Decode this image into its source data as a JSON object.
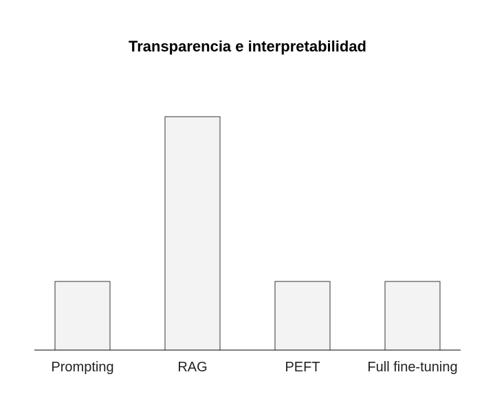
{
  "chart_data": {
    "type": "bar",
    "title": "Transparencia e interpretabilidad",
    "xlabel": "",
    "ylabel": "",
    "categories": [
      "Prompting",
      "RAG",
      "PEFT",
      "Full fine-tuning"
    ],
    "values": [
      1,
      3.4,
      1,
      1
    ],
    "ylim": [
      0,
      4
    ],
    "grid": false,
    "legend": "none",
    "colors": {
      "bar_fill": "#f3f3f3",
      "bar_stroke": "#333333",
      "axis": "#000000",
      "text": "#222222"
    }
  }
}
